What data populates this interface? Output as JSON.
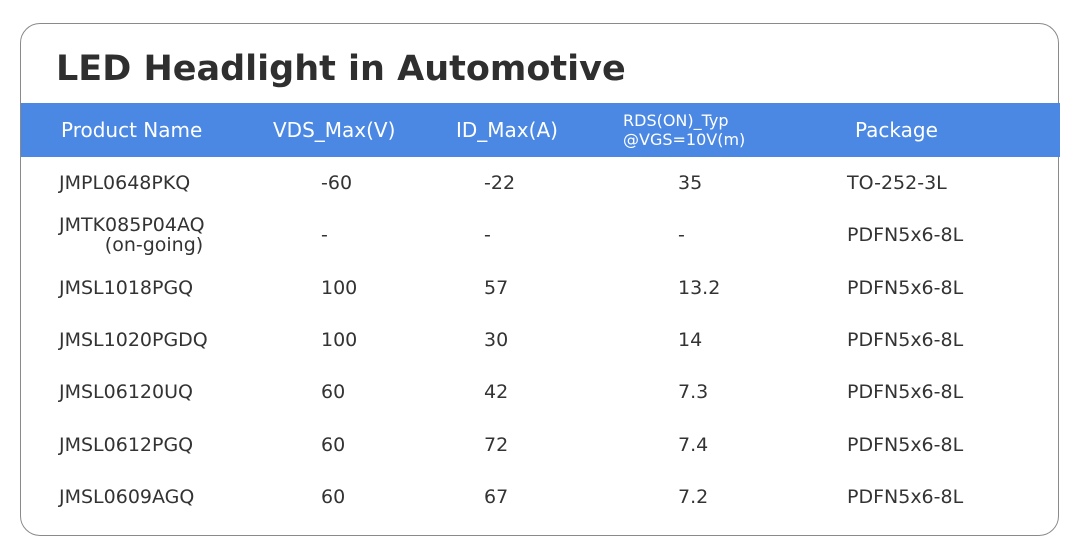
{
  "title": "LED Headlight in Automotive",
  "header": {
    "product_name": "Product Name",
    "vds_max": "VDS_Max(V)",
    "id_max": "ID_Max(A)",
    "rds_line1": "RDS(ON)_Typ",
    "rds_line2": "@VGS=10V(m)",
    "package": "Package"
  },
  "colors": {
    "header_bg": "#4a88e4",
    "header_text": "#ffffff",
    "body_text": "#333333",
    "border": "#8a8a8a"
  },
  "rows": [
    {
      "name": "JMPL0648PKQ",
      "name2": "",
      "vds": "-60",
      "id": "-22",
      "rds": "35",
      "package": "TO-252-3L"
    },
    {
      "name": "JMTK085P04AQ",
      "name2": "(on-going)",
      "vds": "-",
      "id": "-",
      "rds": "-",
      "package": "PDFN5x6-8L"
    },
    {
      "name": "JMSL1018PGQ",
      "name2": "",
      "vds": "100",
      "id": "57",
      "rds": "13.2",
      "package": "PDFN5x6-8L"
    },
    {
      "name": "JMSL1020PGDQ",
      "name2": "",
      "vds": "100",
      "id": "30",
      "rds": "14",
      "package": "PDFN5x6-8L"
    },
    {
      "name": "JMSL06120UQ",
      "name2": "",
      "vds": "60",
      "id": "42",
      "rds": "7.3",
      "package": "PDFN5x6-8L"
    },
    {
      "name": "JMSL0612PGQ",
      "name2": "",
      "vds": "60",
      "id": "72",
      "rds": "7.4",
      "package": "PDFN5x6-8L"
    },
    {
      "name": "JMSL0609AGQ",
      "name2": "",
      "vds": "60",
      "id": "67",
      "rds": "7.2",
      "package": "PDFN5x6-8L"
    }
  ]
}
